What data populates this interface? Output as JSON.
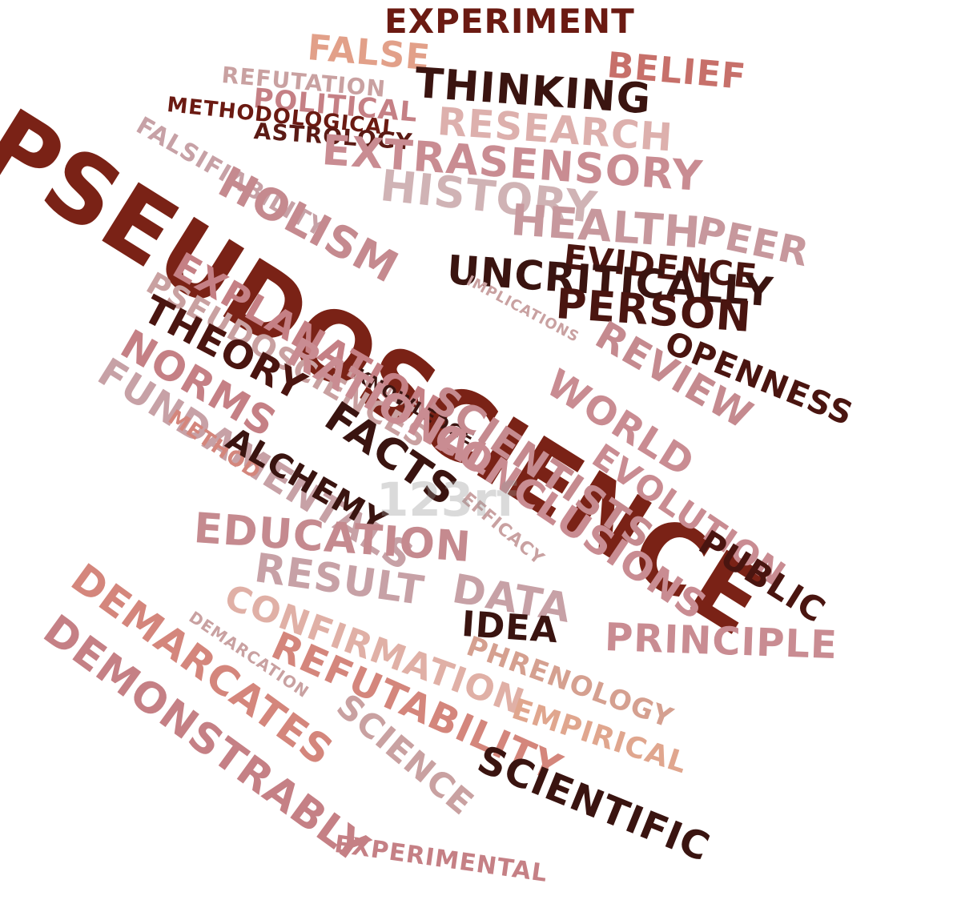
{
  "words": [
    {
      "text": "EXPERIMENT",
      "color": "#6b1a12"
    },
    {
      "text": "FALSE",
      "color": "#e2a089"
    },
    {
      "text": "BELIEF",
      "color": "#c7706a"
    },
    {
      "text": "REFUTATION",
      "color": "#c9a1a1"
    },
    {
      "text": "THINKING",
      "color": "#3a1410"
    },
    {
      "text": "POLITICAL",
      "color": "#c58085"
    },
    {
      "text": "METHODOLOGICAL",
      "color": "#6b1a12"
    },
    {
      "text": "FALSIFIABILITY",
      "color": "#c7a1a6"
    },
    {
      "text": "ASTROLOGY",
      "color": "#5b1a14"
    },
    {
      "text": "RESEARCH",
      "color": "#ddb0ad"
    },
    {
      "text": "EXTRASENSORY",
      "color": "#c98c92"
    },
    {
      "text": "PSEUDOSCIENCE",
      "color": "#7a2216"
    },
    {
      "text": "HISTORY",
      "color": "#d0b3b5"
    },
    {
      "text": "HOLISM",
      "color": "#c58a8f"
    },
    {
      "text": "HEALTH",
      "color": "#c7989d"
    },
    {
      "text": "PEER",
      "color": "#c7989d"
    },
    {
      "text": "EVIDENCE",
      "color": "#4a1510"
    },
    {
      "text": "UNCRITICALLY",
      "color": "#3a1410"
    },
    {
      "text": "EXPLANATION",
      "color": "#c58085"
    },
    {
      "text": "PSEUDOSCIENCES",
      "color": "#c9a1a1"
    },
    {
      "text": "IMPLICATIONS",
      "color": "#c9a1a1"
    },
    {
      "text": "PERSON",
      "color": "#4a1510"
    },
    {
      "text": "THEORY",
      "color": "#4a1510"
    },
    {
      "text": "REVIEW",
      "color": "#c58a8f"
    },
    {
      "text": "OPENNESS",
      "color": "#4a1510"
    },
    {
      "text": "NORMS",
      "color": "#c58085"
    },
    {
      "text": "IDEOLOGY",
      "color": "#c9a1a1"
    },
    {
      "text": "KNOWLEDGE",
      "color": "#3a1410"
    },
    {
      "text": "RATIONAL",
      "color": "#c98c92"
    },
    {
      "text": "WORLD",
      "color": "#c98c92"
    },
    {
      "text": "FUNDAMENTALS",
      "color": "#c7a1a6"
    },
    {
      "text": "FACTS",
      "color": "#3a1410"
    },
    {
      "text": "SCIENTISTS",
      "color": "#c58a8f"
    },
    {
      "text": "EVOLUTION",
      "color": "#c98c92"
    },
    {
      "text": "METHOD",
      "color": "#d4867c"
    },
    {
      "text": "ALCHEMY",
      "color": "#3a1410"
    },
    {
      "text": "CONCLUSIONS",
      "color": "#c98c92"
    },
    {
      "text": "PUBLIC",
      "color": "#4a1510"
    },
    {
      "text": "EFFICACY",
      "color": "#c9a1a1"
    },
    {
      "text": "EDUCATION",
      "color": "#c58a8f"
    },
    {
      "text": "RESULT",
      "color": "#c7a1a6"
    },
    {
      "text": "DATA",
      "color": "#c7a1a6"
    },
    {
      "text": "CONFIRMATION",
      "color": "#e0b0a6"
    },
    {
      "text": "IDEA",
      "color": "#3a1410"
    },
    {
      "text": "PRINCIPLE",
      "color": "#c98c92"
    },
    {
      "text": "DEMARCATION",
      "color": "#c9a1a1"
    },
    {
      "text": "PHRENOLOGY",
      "color": "#d5a090"
    },
    {
      "text": "DEMARCATES",
      "color": "#d4867c"
    },
    {
      "text": "REFUTABILITY",
      "color": "#d4867c"
    },
    {
      "text": "SCIENCE",
      "color": "#c9a1a1"
    },
    {
      "text": "EMPIRICAL",
      "color": "#e0a68e"
    },
    {
      "text": "DEMONSTRABLY",
      "color": "#c58085"
    },
    {
      "text": "SCIENTIFIC",
      "color": "#3a1410"
    },
    {
      "text": "EXPERIMENTAL",
      "color": "#c58085"
    }
  ],
  "watermark": "123rf"
}
